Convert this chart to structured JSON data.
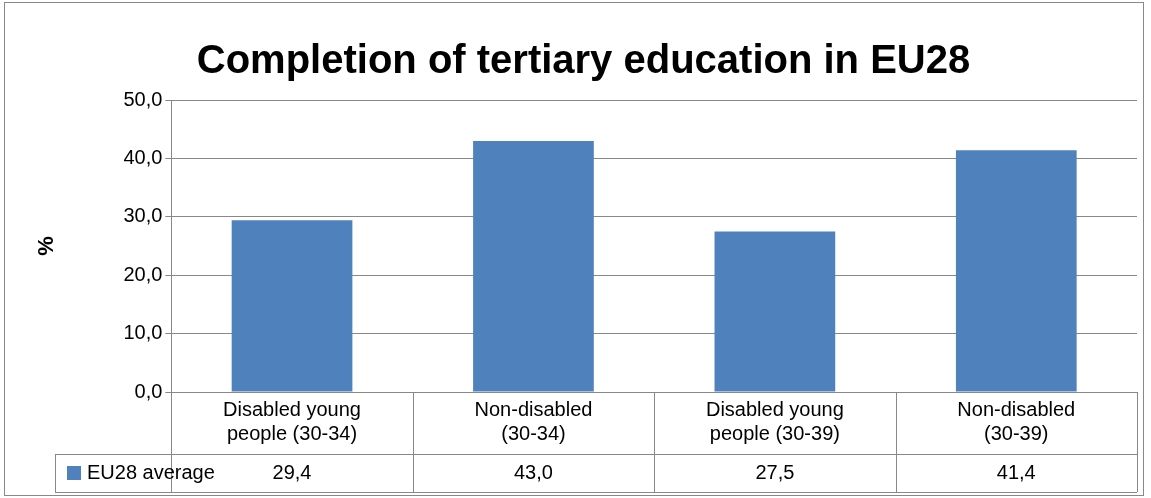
{
  "chart_data": {
    "type": "bar",
    "title": "Completion of tertiary education in EU28",
    "ylabel": "%",
    "categories": [
      "Disabled young people (30-34)",
      "Non-disabled (30-34)",
      "Disabled young people (30-39)",
      "Non-disabled (30-39)"
    ],
    "series": [
      {
        "name": "EU28 average",
        "color": "#4f81bd",
        "values": [
          29.4,
          43.0,
          27.5,
          41.4
        ],
        "value_labels": [
          "29,4",
          "43,0",
          "27,5",
          "41,4"
        ]
      }
    ],
    "ylim": [
      0,
      50
    ],
    "yticks": [
      {
        "value": 0,
        "label": "0,0"
      },
      {
        "value": 10,
        "label": "10,0"
      },
      {
        "value": 20,
        "label": "20,0"
      },
      {
        "value": 30,
        "label": "30,0"
      },
      {
        "value": 40,
        "label": "40,0"
      },
      {
        "value": 50,
        "label": "50,0"
      }
    ],
    "grid": "y",
    "legend": "bottom"
  }
}
